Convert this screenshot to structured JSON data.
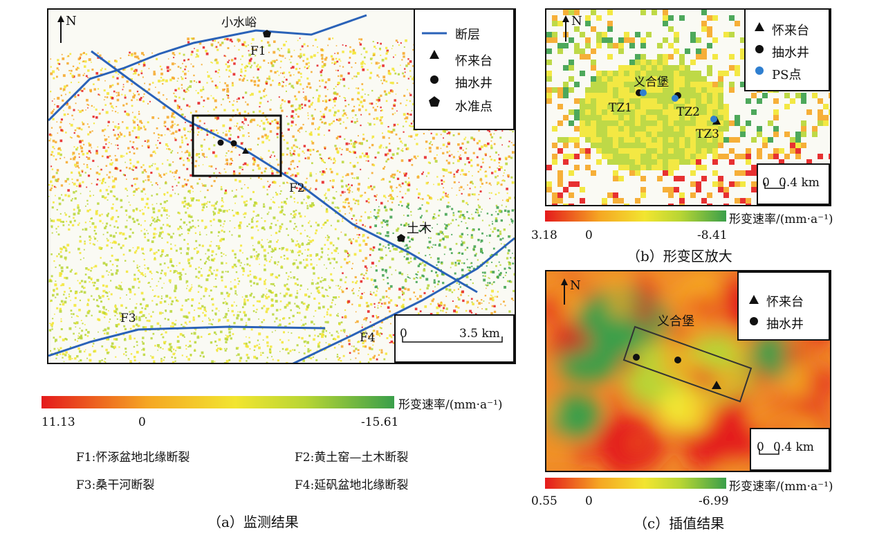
{
  "panel_a": {
    "caption": "（a）监测结果",
    "north": "N",
    "legend": {
      "fault": "断层",
      "station": "怀来台",
      "well": "抽水井",
      "level": "水准点"
    },
    "labels": {
      "xiaoshuiyu": "小水峪",
      "f1": "F1",
      "f2": "F2",
      "f3": "F3",
      "f4": "F4",
      "tumu": "土木"
    },
    "scale": {
      "zero": "0",
      "dist": "3.5 km"
    },
    "colorbar": {
      "title": "形变速率/(mm·a⁻¹)",
      "min": "11.13",
      "mid": "0",
      "max": "-15.61"
    },
    "fault_names": [
      "F1:怀涿盆地北缘断裂",
      "F2:黄土窑—土木断裂",
      "F3:桑干河断裂",
      "F4:延矾盆地北缘断裂"
    ]
  },
  "panel_b": {
    "caption": "（b）形变区放大",
    "north": "N",
    "legend": {
      "station": "怀来台",
      "well": "抽水井",
      "ps": "PS点"
    },
    "labels": {
      "yihebao": "义合堡",
      "tz1": "TZ1",
      "tz2": "TZ2",
      "tz3": "TZ3"
    },
    "scale": {
      "zero": "0",
      "dist": "0.4 km"
    },
    "colorbar": {
      "title": "形变速率/(mm·a⁻¹)",
      "min": "3.18",
      "mid": "0",
      "max": "-8.41"
    }
  },
  "panel_c": {
    "caption": "（c）插值结果",
    "north": "N",
    "legend": {
      "station": "怀来台",
      "well": "抽水井"
    },
    "labels": {
      "yihebao": "义合堡"
    },
    "scale": {
      "zero": "0",
      "dist": "0.4 km"
    },
    "colorbar": {
      "title": "形变速率/(mm·a⁻¹)",
      "min": "0.55",
      "mid": "0",
      "max": "-6.99"
    }
  },
  "colors": {
    "fault": "#2a62b8",
    "ps_point": "#2f7fd0",
    "ramp": [
      "#e41a1c",
      "#f5a623",
      "#f2e530",
      "#b7d534",
      "#3a9f4a"
    ]
  }
}
